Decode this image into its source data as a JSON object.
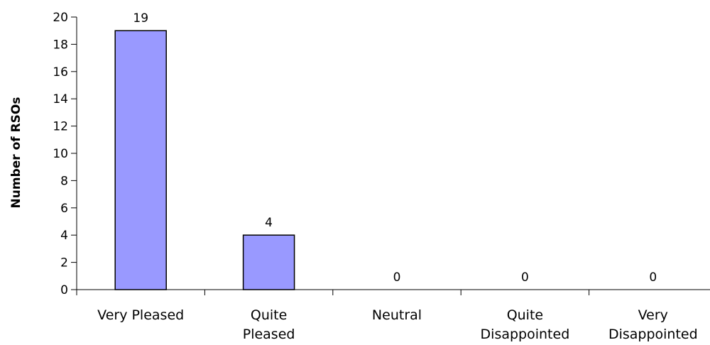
{
  "chart_data": {
    "type": "bar",
    "title": "",
    "xlabel": "",
    "ylabel": "Number of RSOs",
    "categories": [
      [
        "Very Pleased"
      ],
      [
        "Quite",
        "Pleased"
      ],
      [
        "Neutral"
      ],
      [
        "Quite",
        "Disappointed"
      ],
      [
        "Very",
        "Disappointed"
      ]
    ],
    "values": [
      19,
      4,
      0,
      0,
      0
    ],
    "ylim": [
      0,
      20
    ],
    "yticks": [
      0,
      2,
      4,
      6,
      8,
      10,
      12,
      14,
      16,
      18,
      20
    ],
    "grid": false,
    "legend": "none",
    "bar_color": "#9999ff",
    "bar_stroke": "#000000"
  }
}
